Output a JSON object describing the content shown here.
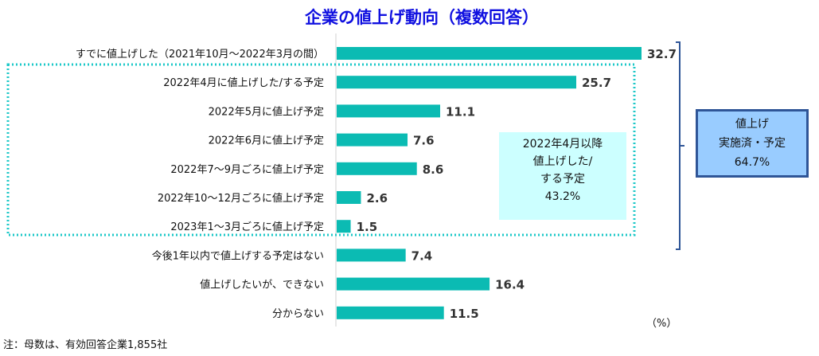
{
  "chart_data": {
    "type": "bar",
    "orientation": "horizontal",
    "title": "企業の値上げ動向（複数回答）",
    "unit": "（%）",
    "categories": [
      "すでに値上げした（2021年10月～2022年3月の間）",
      "2022年4月に値上げした/する予定",
      "2022年5月に値上げ予定",
      "2022年6月に値上げ予定",
      "2022年7～9月ごろに値上げ予定",
      "2022年10～12月ごろに値上げ予定",
      "2023年1～3月ごろに値上げ予定",
      "今後1年以内で値上げする予定はない",
      "値上げしたいが、できない",
      "分からない"
    ],
    "values": [
      32.7,
      25.7,
      11.1,
      7.6,
      8.6,
      2.6,
      1.5,
      7.4,
      16.4,
      11.5
    ],
    "value_labels": [
      "32.7",
      "25.7",
      "11.1",
      "7.6",
      "8.6",
      "2.6",
      "1.5",
      "7.4",
      "16.4",
      "11.5"
    ],
    "bar_color": "#0bbbb3",
    "annotations": {
      "group_box": [
        "2022年4月以降",
        "値上げした/",
        "する予定",
        "43.2%"
      ],
      "total_box": [
        "値上げ",
        "実施済・予定",
        "64.7%"
      ]
    },
    "note": "注：母数は、有効回答企業1,855社"
  }
}
